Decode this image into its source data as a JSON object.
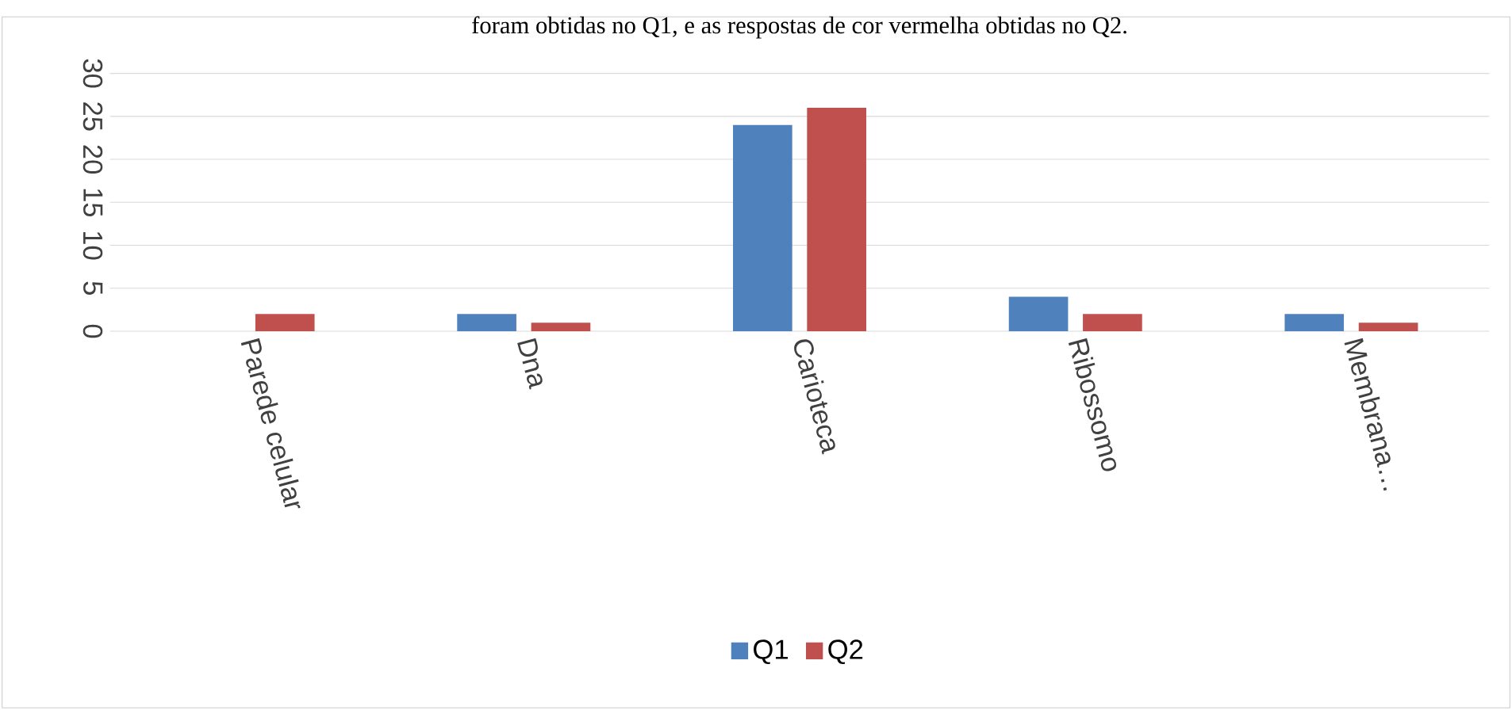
{
  "chart_data": {
    "type": "bar",
    "title": "foram obtidas no Q1, e as respostas de cor vermelha obtidas no Q2.",
    "categories": [
      "Parede celular",
      "Dna",
      "Carioteca",
      "Ribossomo",
      "Membrana…"
    ],
    "series": [
      {
        "name": "Q1",
        "color": "#4f81bd",
        "values": [
          0,
          2,
          24,
          4,
          2
        ]
      },
      {
        "name": "Q2",
        "color": "#c0504d",
        "values": [
          2,
          1,
          26,
          2,
          1
        ]
      }
    ],
    "ylim": [
      0,
      30
    ],
    "yticks": [
      0,
      5,
      10,
      15,
      20,
      25,
      30
    ],
    "grid": "y",
    "legend": "bottom"
  }
}
